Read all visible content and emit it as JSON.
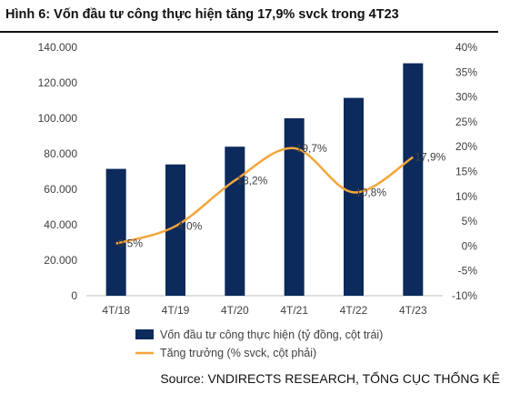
{
  "figure": {
    "title": "Hình 6: Vốn đầu tư công thực hiện tăng 17,9% svck trong 4T23",
    "source": "Source: VNDIRECTS RESEARCH, TỔNG CỤC THỐNG KÊ"
  },
  "colors": {
    "bar": "#0c2a5c",
    "line": "#f4a63a",
    "axis": "#bfbfbf"
  },
  "chart_data": {
    "type": "bar",
    "categories": [
      "4T/18",
      "4T/19",
      "4T/20",
      "4T/21",
      "4T/22",
      "4T/23"
    ],
    "series": [
      {
        "name": "Vốn đầu tư công thực hiện (tỷ đồng, cột trái)",
        "type": "bar",
        "axis": "left",
        "values": [
          71500,
          74000,
          84000,
          100000,
          111500,
          131000
        ]
      },
      {
        "name": "Tăng trưởng (% svck, cột phải)",
        "type": "line",
        "axis": "right",
        "values": [
          0.5,
          4.0,
          13.2,
          19.7,
          10.8,
          17.9
        ],
        "labels": [
          "0,5%",
          "4,0%",
          "13,2%",
          "19,7%",
          "10,8%",
          "17,9%"
        ]
      }
    ],
    "y_left": {
      "min": 0,
      "max": 140000,
      "ticks": [
        "0",
        "20.000",
        "40.000",
        "60.000",
        "80.000",
        "100.000",
        "120.000",
        "140.000"
      ]
    },
    "y_right": {
      "min": -10,
      "max": 40,
      "ticks": [
        "-10%",
        "-5%",
        "0%",
        "5%",
        "10%",
        "15%",
        "20%",
        "25%",
        "30%",
        "35%",
        "40%"
      ]
    },
    "grid": false,
    "legend": "bottom-left"
  }
}
